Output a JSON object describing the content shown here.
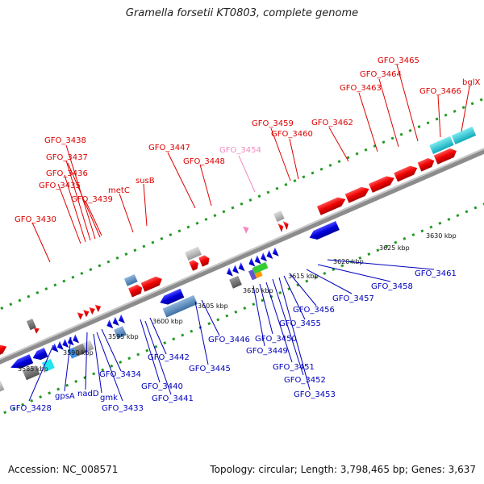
{
  "title": "Gramella forsetii KT0803, complete genome",
  "footer": {
    "accession": "Accession: NC_008571",
    "summary": "Topology: circular; Length: 3,798,465 bp; Genes: 3,637"
  },
  "colors": {
    "forward": "#ee0000",
    "reverse": "#0000dd",
    "backbone": "#888888",
    "tick_dots": "#229922",
    "label_red": "#dd0000",
    "label_blue": "#0000bb",
    "label_pink": "#f08ac0",
    "cyan_gene": "#22ccdd"
  },
  "position_ticks": [
    "3585 kbp",
    "3590 kbp",
    "3595 kbp",
    "3600 kbp",
    "3605 kbp",
    "3610 kbp",
    "3615 kbp",
    "3620 kbp",
    "3625 kbp",
    "3630 kbp"
  ],
  "forward_labels": [
    "GFO_3430",
    "GFO_3435",
    "GFO_3436",
    "GFO_3437",
    "GFO_3438",
    "GFO_3439",
    "metC",
    "susB",
    "GFO_3447",
    "GFO_3448",
    "GFO_3454",
    "GFO_3459",
    "GFO_3460",
    "GFO_3462",
    "GFO_3463",
    "GFO_3464",
    "GFO_3465",
    "GFO_3466",
    "bglX"
  ],
  "reverse_labels": [
    "GFO_3428",
    "gpsA",
    "nadD",
    "gmk",
    "GFO_3433",
    "GFO_3434",
    "GFO_3440",
    "GFO_3441",
    "GFO_3442",
    "GFO_3445",
    "GFO_3446",
    "GFO_3449",
    "GFO_3450",
    "GFO_3451",
    "GFO_3452",
    "GFO_3453",
    "GFO_3455",
    "GFO_3456",
    "GFO_3457",
    "GFO_3458",
    "GFO_3461"
  ]
}
